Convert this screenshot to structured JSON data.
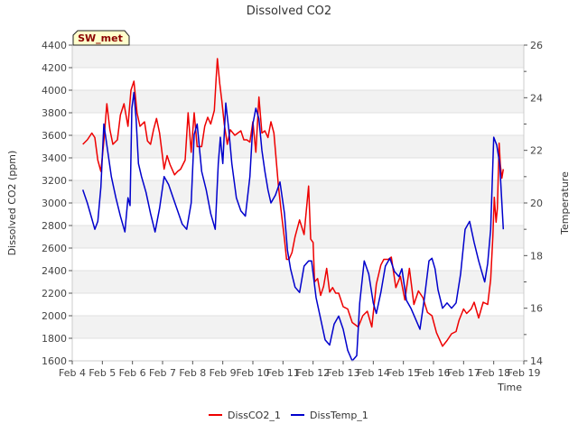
{
  "chart_data": {
    "type": "line",
    "title": "Dissolved CO2",
    "xlabel": "Time",
    "ylabel": "Dissolved CO2 (ppm)",
    "y2label": "Temperature",
    "site_badge": "SW_met",
    "x_ticks": [
      "Feb 4",
      "Feb 5",
      "Feb 6",
      "Feb 7",
      "Feb 8",
      "Feb 9",
      "Feb 10",
      "Feb 11",
      "Feb 12",
      "Feb 13",
      "Feb 14",
      "Feb 15",
      "Feb 16",
      "Feb 17",
      "Feb 18",
      "Feb 19"
    ],
    "xlim": [
      4,
      19
    ],
    "ylim": [
      1600,
      4400
    ],
    "y_ticks": [
      1600,
      1800,
      2000,
      2200,
      2400,
      2600,
      2800,
      3000,
      3200,
      3400,
      3600,
      3800,
      4000,
      4200,
      4400
    ],
    "y2lim": [
      14,
      26
    ],
    "y2_ticks": [
      14,
      16,
      18,
      20,
      22,
      24,
      26
    ],
    "grid": true,
    "legend_position": "bottom-center",
    "series": [
      {
        "name": "DissCO2_1",
        "axis": "left",
        "color": "#ee0000",
        "x": [
          4.35,
          4.5,
          4.65,
          4.75,
          4.85,
          4.95,
          5.05,
          5.15,
          5.25,
          5.35,
          5.5,
          5.6,
          5.72,
          5.85,
          5.95,
          6.05,
          6.15,
          6.25,
          6.4,
          6.5,
          6.6,
          6.7,
          6.8,
          6.9,
          7.05,
          7.15,
          7.25,
          7.4,
          7.5,
          7.6,
          7.75,
          7.85,
          7.95,
          8.05,
          8.15,
          8.3,
          8.4,
          8.5,
          8.6,
          8.72,
          8.78,
          8.82,
          8.9,
          8.97,
          9.05,
          9.15,
          9.25,
          9.4,
          9.5,
          9.6,
          9.7,
          9.8,
          9.9,
          10.0,
          10.1,
          10.2,
          10.3,
          10.4,
          10.5,
          10.6,
          10.7,
          10.85,
          10.95,
          11.05,
          11.12,
          11.2,
          11.3,
          11.4,
          11.55,
          11.7,
          11.85,
          11.92,
          12.0,
          12.05,
          12.15,
          12.25,
          12.35,
          12.45,
          12.55,
          12.65,
          12.75,
          12.85,
          13.0,
          13.15,
          13.3,
          13.5,
          13.65,
          13.8,
          13.95,
          14.1,
          14.25,
          14.35,
          14.5,
          14.6,
          14.75,
          14.9,
          15.05,
          15.2,
          15.35,
          15.5,
          15.65,
          15.8,
          15.95,
          16.1,
          16.3,
          16.45,
          16.6,
          16.75,
          16.85,
          17.0,
          17.1,
          17.25,
          17.35,
          17.5,
          17.65,
          17.8,
          17.9,
          17.97,
          18.02,
          18.08,
          18.12,
          18.18,
          18.22,
          18.27,
          18.32
        ],
        "values": [
          3520,
          3560,
          3620,
          3580,
          3380,
          3280,
          3550,
          3880,
          3650,
          3520,
          3560,
          3780,
          3880,
          3680,
          4000,
          4080,
          3800,
          3680,
          3720,
          3550,
          3520,
          3650,
          3750,
          3620,
          3300,
          3420,
          3340,
          3250,
          3280,
          3300,
          3380,
          3800,
          3450,
          3800,
          3500,
          3500,
          3680,
          3760,
          3700,
          3820,
          4100,
          4280,
          4060,
          3900,
          3700,
          3520,
          3650,
          3600,
          3620,
          3640,
          3560,
          3560,
          3540,
          3720,
          3450,
          3940,
          3620,
          3640,
          3580,
          3720,
          3620,
          3150,
          2900,
          2680,
          2500,
          2500,
          2560,
          2700,
          2850,
          2720,
          3150,
          2680,
          2650,
          2300,
          2330,
          2180,
          2260,
          2420,
          2210,
          2250,
          2200,
          2200,
          2080,
          2060,
          1940,
          1900,
          2000,
          2040,
          1900,
          2280,
          2450,
          2500,
          2500,
          2520,
          2250,
          2350,
          2140,
          2420,
          2100,
          2220,
          2160,
          2030,
          2000,
          1850,
          1730,
          1780,
          1840,
          1860,
          1960,
          2060,
          2020,
          2060,
          2120,
          1980,
          2120,
          2100,
          2320,
          2700,
          3050,
          2830,
          2950,
          3530,
          3340,
          3220,
          3300
        ]
      },
      {
        "name": "DissTemp_1",
        "axis": "right",
        "color": "#0000cc",
        "x": [
          4.35,
          4.5,
          4.65,
          4.75,
          4.85,
          4.95,
          5.05,
          5.15,
          5.3,
          5.45,
          5.6,
          5.75,
          5.85,
          5.92,
          5.98,
          6.05,
          6.12,
          6.2,
          6.3,
          6.45,
          6.6,
          6.75,
          6.9,
          7.05,
          7.2,
          7.35,
          7.5,
          7.65,
          7.8,
          7.95,
          8.05,
          8.15,
          8.3,
          8.45,
          8.6,
          8.75,
          8.85,
          8.92,
          9.0,
          9.1,
          9.2,
          9.3,
          9.45,
          9.6,
          9.75,
          9.9,
          10.0,
          10.1,
          10.2,
          10.3,
          10.4,
          10.5,
          10.6,
          10.75,
          10.9,
          11.05,
          11.15,
          11.25,
          11.4,
          11.55,
          11.7,
          11.85,
          11.95,
          12.1,
          12.25,
          12.4,
          12.55,
          12.7,
          12.85,
          13.0,
          13.15,
          13.3,
          13.45,
          13.55,
          13.7,
          13.85,
          14.0,
          14.1,
          14.25,
          14.4,
          14.55,
          14.7,
          14.85,
          14.95,
          15.1,
          15.25,
          15.4,
          15.55,
          15.7,
          15.85,
          15.95,
          16.05,
          16.15,
          16.3,
          16.45,
          16.6,
          16.75,
          16.9,
          17.05,
          17.2,
          17.35,
          17.5,
          17.6,
          17.7,
          17.8,
          17.9,
          18.0,
          18.1,
          18.2,
          18.32
        ],
        "values": [
          20.5,
          20.0,
          19.4,
          19.0,
          19.3,
          20.6,
          23.0,
          22.2,
          21.0,
          20.2,
          19.5,
          18.9,
          20.2,
          19.9,
          23.6,
          24.2,
          23.2,
          21.5,
          21.0,
          20.4,
          19.6,
          18.9,
          19.8,
          21.0,
          20.7,
          20.2,
          19.7,
          19.2,
          19.0,
          20.0,
          22.6,
          23.0,
          21.2,
          20.5,
          19.6,
          19.0,
          21.5,
          22.5,
          21.5,
          23.8,
          22.8,
          21.5,
          20.2,
          19.7,
          19.5,
          21.0,
          23.0,
          23.6,
          23.2,
          22.0,
          21.2,
          20.5,
          20.0,
          20.3,
          20.8,
          19.6,
          18.2,
          17.5,
          16.8,
          16.6,
          17.6,
          17.8,
          17.8,
          16.4,
          15.6,
          14.8,
          14.6,
          15.4,
          15.7,
          15.2,
          14.4,
          14.0,
          14.2,
          16.2,
          17.8,
          17.3,
          16.2,
          15.8,
          16.6,
          17.6,
          17.9,
          17.4,
          17.2,
          17.5,
          16.3,
          16.0,
          15.6,
          15.2,
          16.4,
          17.8,
          17.9,
          17.5,
          16.7,
          16.0,
          16.2,
          16.0,
          16.2,
          17.3,
          19.0,
          19.3,
          18.5,
          17.8,
          17.4,
          17.0,
          17.7,
          19.0,
          22.5,
          22.2,
          21.5,
          19.0
        ]
      }
    ]
  }
}
